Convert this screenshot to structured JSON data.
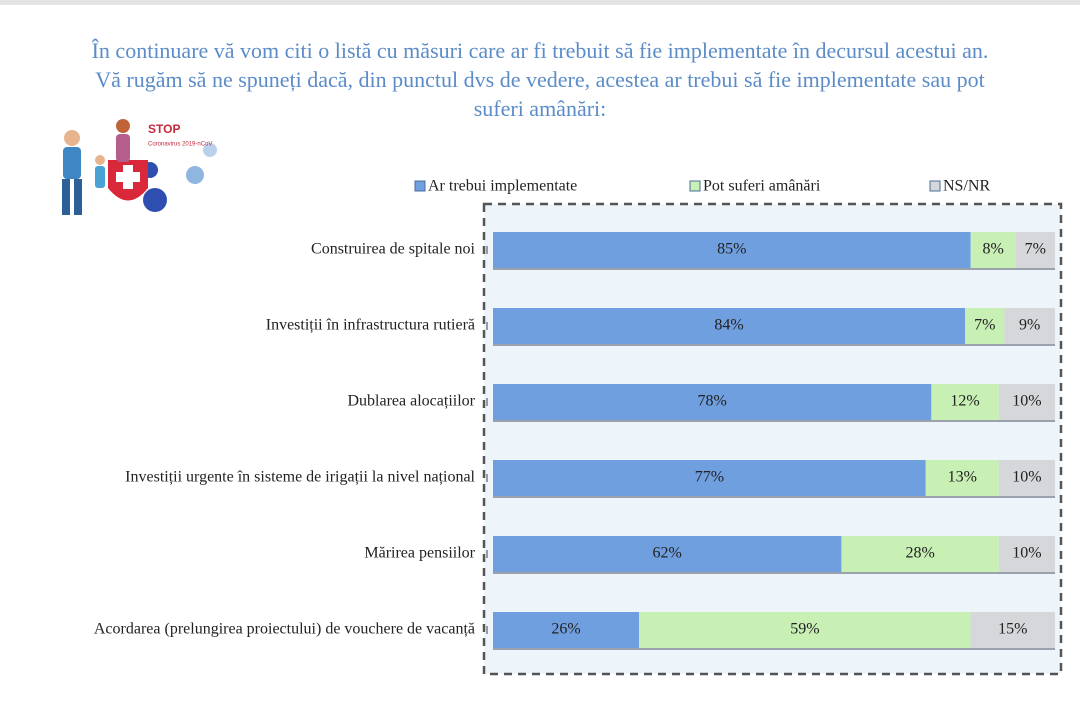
{
  "chart_data": {
    "type": "stacked-bar-horizontal",
    "title": "În continuare vă vom citi o listă cu măsuri care ar fi trebuit să fie implementate în decursul acestui an. Vă rugăm să ne spuneți dacă, din punctul dvs de vedere, acestea ar trebui să fie implementate sau pot suferi amânări:",
    "categories": [
      "Construirea de spitale noi",
      "Investiții în infrastructura rutieră",
      "Dublarea alocațiilor",
      "Investiții urgente în sisteme de irigații la nivel național",
      "Mărirea pensiilor",
      "Acordarea (prelungirea proiectului) de vouchere de vacanță"
    ],
    "xlim": [
      0,
      100
    ],
    "series": [
      {
        "name": "Ar trebui implementate",
        "color": "#709fe0",
        "values": [
          85,
          84,
          78,
          77,
          62,
          26
        ],
        "value_labels": [
          "85%",
          "84%",
          "78%",
          "77%",
          "62%",
          "26%"
        ]
      },
      {
        "name": "Pot suferi amânări",
        "color": "#c8efb4",
        "values": [
          8,
          7,
          12,
          13,
          28,
          59
        ],
        "value_labels": [
          "8%",
          "7%",
          "12%",
          "13%",
          "28%",
          "59%"
        ]
      },
      {
        "name": "NS/NR",
        "color": "#d5d7da",
        "values": [
          7,
          9,
          10,
          10,
          10,
          15
        ],
        "value_labels": [
          "7%",
          "9%",
          "10%",
          "10%",
          "10%",
          "15%"
        ]
      }
    ],
    "legend": "top"
  },
  "image_texts": [
    "STOP",
    "Coronavirus 2019-nCoV"
  ]
}
